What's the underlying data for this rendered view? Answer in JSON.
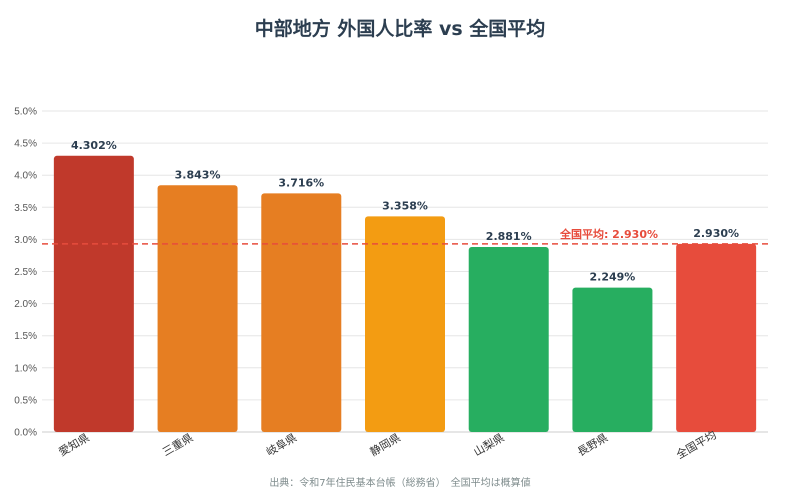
{
  "chart_data": {
    "type": "bar",
    "title": "中部地方 外国人比率 vs 全国平均",
    "xlabel": "",
    "ylabel": "",
    "ylim": [
      0,
      5
    ],
    "yticks": [
      "0.0%",
      "0.5%",
      "1.0%",
      "1.5%",
      "2.0%",
      "2.5%",
      "3.0%",
      "3.5%",
      "4.0%",
      "4.5%",
      "5.0%"
    ],
    "grid": true,
    "categories": [
      "愛知県",
      "三重県",
      "岐阜県",
      "静岡県",
      "山梨県",
      "長野県",
      "全国平均"
    ],
    "values": [
      4.302,
      3.843,
      3.716,
      3.358,
      2.881,
      2.249,
      2.93
    ],
    "value_labels": [
      "4.302%",
      "3.843%",
      "3.716%",
      "3.358%",
      "2.881%",
      "2.249%",
      "2.930%"
    ],
    "bar_colors": [
      "#c0392b",
      "#e67e22",
      "#e67e22",
      "#f39c12",
      "#27ae60",
      "#27ae60",
      "#e74c3c"
    ],
    "highlight_category_color": "#e74c3c",
    "reference_line": {
      "value": 2.93,
      "label": "全国平均: 2.930%",
      "color": "#e74c3c",
      "style": "dashed"
    },
    "source_note": "出典：令和7年住民基本台帳（総務省）　全国平均は概算値"
  }
}
